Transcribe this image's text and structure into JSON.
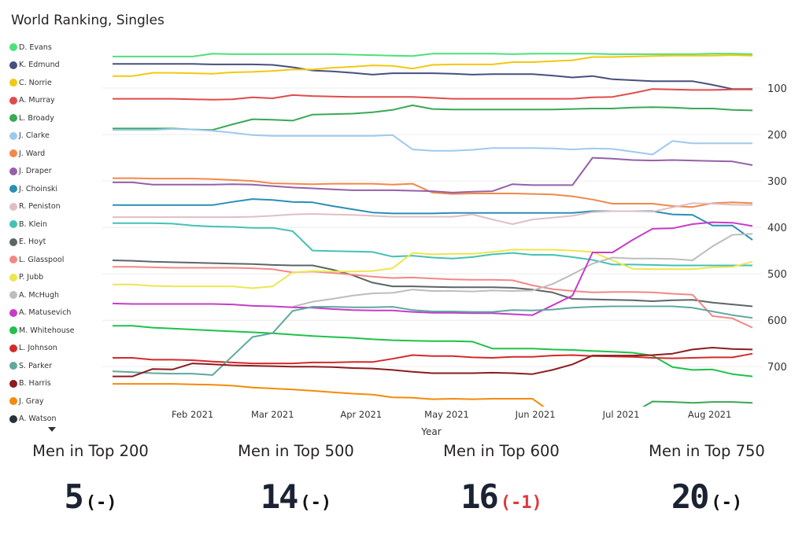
{
  "chart_data": {
    "type": "line",
    "title": "World Ranking, Singles",
    "xlabel": "Year",
    "ylabel": "",
    "y_inverted": true,
    "ylim": [
      0,
      786
    ],
    "yticks": [
      100,
      200,
      300,
      400,
      500,
      600,
      700
    ],
    "x_weeks": 33,
    "x_start": "2021-01-04",
    "x_tick_labels": [
      {
        "label": "Feb 2021",
        "week": 4
      },
      {
        "label": "Mar 2021",
        "week": 8
      },
      {
        "label": "Apr 2021",
        "week": 12.43
      },
      {
        "label": "May 2021",
        "week": 16.71
      },
      {
        "label": "Jun 2021",
        "week": 21.14
      },
      {
        "label": "Jul 2021",
        "week": 25.43
      },
      {
        "label": "Aug 2021",
        "week": 29.86
      }
    ],
    "grid": true,
    "legend_position": "left",
    "series": [
      {
        "name": "D. Evans",
        "color": "#4ee07a",
        "values": [
          32,
          32,
          32,
          32,
          32,
          26,
          27,
          27,
          27,
          27,
          27,
          27,
          28,
          29,
          30,
          31,
          26,
          26,
          26,
          26,
          27,
          26,
          26,
          26,
          26,
          27,
          27,
          27,
          27,
          27,
          26,
          26,
          27
        ]
      },
      {
        "name": "K. Edmund",
        "color": "#46507f",
        "values": [
          48,
          48,
          48,
          48,
          48,
          49,
          49,
          49,
          50,
          55,
          62,
          64,
          67,
          71,
          68,
          68,
          68,
          69,
          71,
          70,
          70,
          70,
          73,
          77,
          74,
          81,
          83,
          85,
          85,
          85,
          93,
          102,
          102
        ]
      },
      {
        "name": "C. Norrie",
        "color": "#f2c811",
        "values": [
          74,
          74,
          67,
          67,
          68,
          69,
          66,
          65,
          63,
          60,
          60,
          56,
          54,
          51,
          52,
          58,
          50,
          49,
          49,
          49,
          44,
          44,
          42,
          40,
          33,
          33,
          32,
          31,
          30,
          30,
          30,
          29,
          30
        ]
      },
      {
        "name": "A. Murray",
        "color": "#e04b4b",
        "values": [
          123,
          123,
          123,
          123,
          124,
          125,
          124,
          120,
          122,
          115,
          117,
          118,
          119,
          119,
          119,
          119,
          121,
          123,
          123,
          123,
          123,
          123,
          123,
          123,
          120,
          119,
          111,
          102,
          103,
          104,
          104,
          103,
          103
        ]
      },
      {
        "name": "L. Broady",
        "color": "#3aa857",
        "values": [
          187,
          187,
          187,
          187,
          189,
          190,
          178,
          167,
          168,
          170,
          157,
          156,
          155,
          152,
          147,
          137,
          145,
          146,
          146,
          146,
          146,
          146,
          146,
          145,
          144,
          144,
          142,
          141,
          142,
          144,
          144,
          147,
          148
        ]
      },
      {
        "name": "J. Clarke",
        "color": "#9ec9ee",
        "values": [
          190,
          190,
          190,
          188,
          189,
          192,
          196,
          201,
          203,
          203,
          203,
          203,
          203,
          203,
          201,
          232,
          235,
          235,
          233,
          229,
          229,
          229,
          230,
          232,
          230,
          231,
          237,
          243,
          214,
          219,
          219,
          219,
          219
        ]
      },
      {
        "name": "J. Ward",
        "color": "#f0894a",
        "values": [
          294,
          294,
          295,
          295,
          295,
          296,
          298,
          300,
          305,
          306,
          307,
          306,
          306,
          306,
          308,
          306,
          325,
          328,
          327,
          327,
          327,
          328,
          329,
          333,
          340,
          349,
          349,
          349,
          354,
          356,
          348,
          346,
          348
        ]
      },
      {
        "name": "J. Draper",
        "color": "#9461a8",
        "values": [
          303,
          303,
          308,
          308,
          308,
          308,
          307,
          308,
          311,
          314,
          316,
          318,
          320,
          320,
          320,
          321,
          322,
          325,
          323,
          322,
          307,
          309,
          309,
          309,
          250,
          252,
          255,
          256,
          255,
          256,
          257,
          258,
          266
        ]
      },
      {
        "name": "J. Choinski",
        "color": "#2b8fb3",
        "values": [
          352,
          352,
          352,
          352,
          352,
          352,
          345,
          339,
          341,
          345,
          346,
          354,
          361,
          368,
          370,
          370,
          370,
          369,
          369,
          369,
          369,
          369,
          369,
          369,
          365,
          365,
          365,
          365,
          372,
          373,
          396,
          396,
          427
        ]
      },
      {
        "name": "R. Peniston",
        "color": "#dfbfc5",
        "values": [
          378,
          378,
          378,
          378,
          378,
          378,
          378,
          377,
          375,
          372,
          371,
          372,
          373,
          375,
          377,
          377,
          377,
          377,
          372,
          383,
          393,
          383,
          379,
          375,
          367,
          365,
          365,
          366,
          357,
          348,
          349,
          351,
          352
        ]
      },
      {
        "name": "B. Klein",
        "color": "#44c2b4",
        "values": [
          391,
          391,
          391,
          392,
          396,
          398,
          399,
          401,
          401,
          408,
          450,
          451,
          452,
          453,
          463,
          461,
          465,
          467,
          464,
          458,
          455,
          459,
          459,
          464,
          470,
          480,
          480,
          481,
          482,
          482,
          482,
          482,
          482
        ]
      },
      {
        "name": "E. Hoyt",
        "color": "#5d6566",
        "values": [
          471,
          472,
          474,
          475,
          476,
          477,
          478,
          479,
          481,
          482,
          482,
          491,
          503,
          519,
          527,
          527,
          528,
          529,
          529,
          529,
          530,
          534,
          540,
          554,
          555,
          556,
          557,
          559,
          557,
          556,
          562,
          566,
          570
        ]
      },
      {
        "name": "L. Glasspool",
        "color": "#f38787",
        "values": [
          485,
          485,
          486,
          487,
          487,
          487,
          487,
          488,
          490,
          497,
          495,
          498,
          502,
          506,
          509,
          508,
          510,
          512,
          513,
          513,
          514,
          525,
          533,
          537,
          540,
          539,
          539,
          540,
          543,
          545,
          591,
          596,
          616
        ]
      },
      {
        "name": "P. Jubb",
        "color": "#ede64f",
        "values": [
          523,
          523,
          526,
          527,
          527,
          527,
          527,
          531,
          527,
          497,
          494,
          495,
          495,
          494,
          488,
          455,
          458,
          457,
          457,
          453,
          448,
          448,
          448,
          450,
          453,
          471,
          489,
          490,
          490,
          490,
          486,
          485,
          474
        ]
      },
      {
        "name": "A. McHugh",
        "color": "#bdbdbd",
        "values": [
          null,
          null,
          null,
          null,
          null,
          null,
          null,
          null,
          null,
          571,
          560,
          554,
          547,
          542,
          541,
          534,
          537,
          537,
          538,
          536,
          537,
          536,
          522,
          501,
          478,
          465,
          467,
          467,
          468,
          471,
          441,
          416,
          414
        ]
      },
      {
        "name": "A. Matusevich",
        "color": "#c63cc9",
        "values": [
          564,
          565,
          565,
          565,
          565,
          565,
          566,
          569,
          570,
          572,
          573,
          576,
          578,
          579,
          579,
          582,
          584,
          584,
          585,
          585,
          587,
          589,
          568,
          547,
          454,
          454,
          427,
          403,
          402,
          393,
          389,
          390,
          397
        ]
      },
      {
        "name": "M. Whitehouse",
        "color": "#1ec24a",
        "values": [
          612,
          612,
          616,
          618,
          620,
          622,
          624,
          626,
          628,
          631,
          634,
          636,
          638,
          641,
          643,
          644,
          645,
          645,
          646,
          661,
          661,
          661,
          663,
          664,
          666,
          668,
          670,
          676,
          701,
          707,
          706,
          716,
          721
        ]
      },
      {
        "name": "L. Johnson",
        "color": "#d42a2a",
        "values": [
          681,
          681,
          685,
          685,
          686,
          689,
          691,
          693,
          693,
          693,
          691,
          691,
          690,
          690,
          683,
          675,
          677,
          677,
          680,
          681,
          679,
          679,
          676,
          675,
          677,
          678,
          679,
          681,
          682,
          681,
          680,
          680,
          672
        ]
      },
      {
        "name": "S. Parker",
        "color": "#5fa8a0",
        "values": [
          710,
          712,
          714,
          715,
          715,
          718,
          677,
          636,
          628,
          580,
          571,
          571,
          572,
          572,
          571,
          578,
          581,
          581,
          582,
          582,
          578,
          579,
          577,
          573,
          571,
          570,
          570,
          570,
          570,
          573,
          581,
          589,
          595
        ]
      },
      {
        "name": "B. Harris",
        "color": "#8c1c1f",
        "values": [
          721,
          721,
          705,
          706,
          693,
          695,
          697,
          698,
          699,
          700,
          700,
          701,
          703,
          704,
          707,
          711,
          714,
          714,
          714,
          713,
          714,
          716,
          707,
          695,
          676,
          676,
          676,
          675,
          672,
          663,
          659,
          662,
          663
        ]
      },
      {
        "name": "J. Gray",
        "color": "#f58a0a",
        "values": [
          737,
          737,
          737,
          737,
          738,
          739,
          741,
          745,
          747,
          749,
          752,
          755,
          758,
          760,
          766,
          767,
          770,
          769,
          770,
          769,
          769,
          769,
          800,
          null,
          null,
          null,
          null,
          null,
          null,
          null,
          null,
          null,
          null
        ]
      },
      {
        "name": "A. Watson",
        "color": "#26343a",
        "values": []
      },
      {
        "color": "#3aa857",
        "values": [
          null,
          null,
          null,
          null,
          null,
          null,
          null,
          null,
          null,
          null,
          null,
          null,
          null,
          null,
          null,
          null,
          null,
          null,
          null,
          null,
          null,
          null,
          null,
          null,
          null,
          null,
          800,
          775,
          776,
          778,
          776,
          776,
          778
        ]
      }
    ]
  },
  "kpis": [
    {
      "label": "Men in Top 200",
      "value": "5",
      "change": "(-)",
      "change_color": "#111111"
    },
    {
      "label": "Men in Top 500",
      "value": "14",
      "change": "(-)",
      "change_color": "#111111"
    },
    {
      "label": "Men in Top 600",
      "value": "16",
      "change": "(-1)",
      "change_color": "#e0393e"
    },
    {
      "label": "Men in Top 750",
      "value": "20",
      "change": "(-)",
      "change_color": "#111111"
    }
  ]
}
